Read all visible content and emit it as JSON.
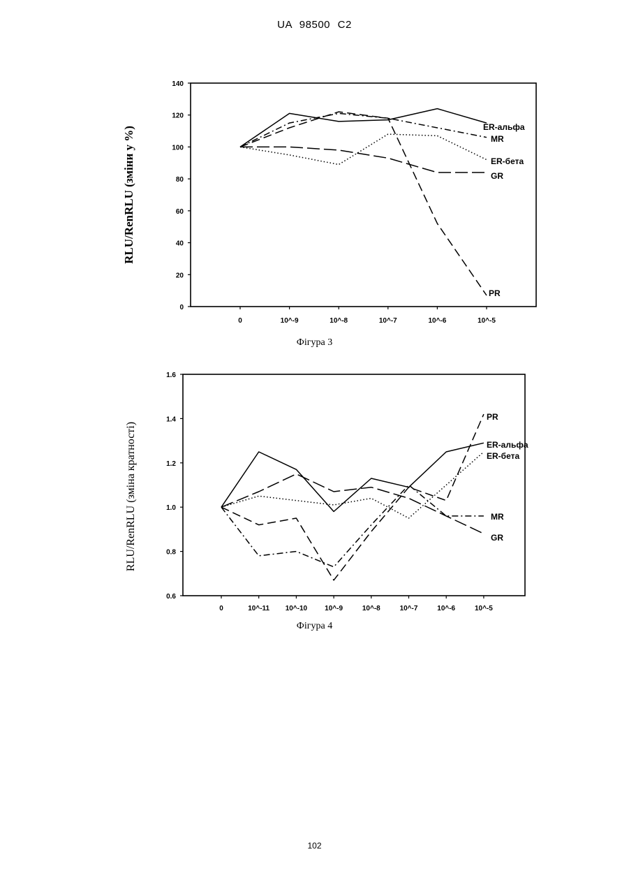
{
  "header": {
    "doc_id": "UA   98500   C2"
  },
  "footer": {
    "page_number": "102"
  },
  "chart_data": [
    {
      "type": "line",
      "caption": "Фігура 3",
      "ylabel": "RLU/RenRLU (зміни у %)",
      "xlabel": "",
      "categories": [
        "0",
        "10^-9",
        "10^-8",
        "10^-7",
        "10^-6",
        "10^-5"
      ],
      "ylim": [
        0,
        140
      ],
      "yticks": [
        "0",
        "20",
        "40",
        "60",
        "80",
        "100",
        "120",
        "140"
      ],
      "grid": false,
      "series": [
        {
          "name": "ER-альфа",
          "style": "solid",
          "values": [
            100,
            121,
            116,
            117,
            124,
            115
          ]
        },
        {
          "name": "MR",
          "style": "dashdot",
          "values": [
            100,
            115,
            121,
            118,
            112,
            106
          ]
        },
        {
          "name": "ER-бета",
          "style": "dotted",
          "values": [
            100,
            95,
            89,
            108,
            107,
            92
          ]
        },
        {
          "name": "GR",
          "style": "longdash",
          "values": [
            100,
            100,
            98,
            93,
            84,
            84
          ]
        },
        {
          "name": "PR",
          "style": "dash",
          "values": [
            100,
            112,
            122,
            118,
            52,
            7
          ]
        }
      ]
    },
    {
      "type": "line",
      "caption": "Фігура 4",
      "ylabel": "RLU/RenRLU (зміна кратності)",
      "xlabel": "",
      "categories": [
        "0",
        "10^-11",
        "10^-10",
        "10^-9",
        "10^-8",
        "10^-7",
        "10^-6",
        "10^-5"
      ],
      "ylim": [
        0.6,
        1.6
      ],
      "yticks": [
        "0.6",
        "0.8",
        "1.0",
        "1.2",
        "1.4",
        "1.6"
      ],
      "grid": false,
      "series": [
        {
          "name": "ER-альфа",
          "style": "solid",
          "values": [
            1.0,
            1.25,
            1.17,
            0.98,
            1.13,
            1.09,
            1.25,
            1.29
          ]
        },
        {
          "name": "ER-бета",
          "style": "dotted",
          "values": [
            1.0,
            1.05,
            1.03,
            1.01,
            1.04,
            0.95,
            1.1,
            1.25
          ]
        },
        {
          "name": "PR",
          "style": "dash",
          "values": [
            1.0,
            0.92,
            0.95,
            0.67,
            0.89,
            1.09,
            1.03,
            1.42
          ]
        },
        {
          "name": "MR",
          "style": "dashdot",
          "values": [
            1.0,
            0.78,
            0.8,
            0.73,
            0.92,
            1.1,
            0.96,
            0.96
          ]
        },
        {
          "name": "GR",
          "style": "longdash",
          "values": [
            1.0,
            1.07,
            1.15,
            1.07,
            1.09,
            1.04,
            0.96,
            0.88
          ]
        }
      ]
    }
  ]
}
